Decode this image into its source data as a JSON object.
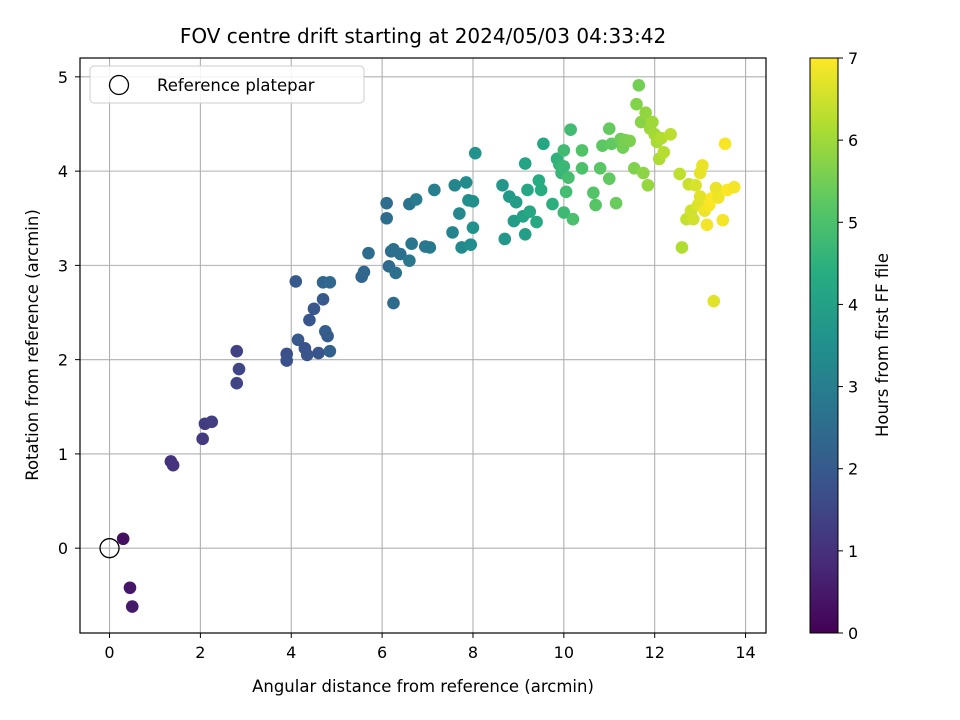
{
  "chart_data": {
    "type": "scatter",
    "title": "FOV centre drift starting at 2024/05/03 04:33:42",
    "xlabel": "Angular distance from reference (arcmin)",
    "ylabel": "Rotation from reference (arcmin)",
    "xlim": [
      -0.65,
      14.45
    ],
    "ylim": [
      -0.9,
      5.2
    ],
    "xticks": [
      0,
      2,
      4,
      6,
      8,
      10,
      12,
      14
    ],
    "yticks": [
      0,
      1,
      2,
      3,
      4,
      5
    ],
    "grid": true,
    "legend": {
      "placement": "upper-left",
      "entries": [
        "Reference platepar"
      ]
    },
    "reference_point": {
      "x": 0,
      "y": 0,
      "label": "Reference platepar"
    },
    "colorbar": {
      "label": "Hours from first FF file",
      "colormap": "viridis",
      "range": [
        0,
        7
      ],
      "ticks": [
        0,
        1,
        2,
        3,
        4,
        5,
        6,
        7
      ]
    },
    "series": [
      {
        "x": [
          0.3,
          0.45,
          0.5,
          1.35,
          1.4,
          2.05,
          2.1,
          2.25,
          2.8,
          2.8,
          2.85,
          3.9,
          3.9,
          4.1,
          4.15,
          4.3,
          4.35,
          4.4,
          4.5,
          4.6,
          4.7,
          4.7,
          4.75,
          4.8,
          4.85,
          4.85,
          5.55,
          5.6,
          5.7,
          6.1,
          6.1,
          6.15,
          6.2,
          6.25,
          6.25,
          6.3,
          6.4,
          6.6,
          6.6,
          6.65,
          6.75,
          6.95,
          7.05,
          7.15,
          7.55,
          7.6,
          7.7,
          7.75,
          7.85,
          7.9,
          7.95,
          8.0,
          8.0,
          8.05,
          8.65,
          8.7,
          8.8,
          8.9,
          8.95,
          9.1,
          9.15,
          9.15,
          9.2,
          9.25,
          9.4,
          9.45,
          9.5,
          9.55,
          9.75,
          9.85,
          9.9,
          9.95,
          10.0,
          10.0,
          10.0,
          10.05,
          10.1,
          10.15,
          10.2,
          10.4,
          10.4,
          10.65,
          10.7,
          10.8,
          10.85,
          11.0,
          11.0,
          11.05,
          11.15,
          11.25,
          11.3,
          11.35,
          11.45,
          11.55,
          11.6,
          11.65,
          11.7,
          11.75,
          11.8,
          11.85,
          11.9,
          11.95,
          12.0,
          12.05,
          12.1,
          12.15,
          12.2,
          12.35,
          12.55,
          12.6,
          12.7,
          12.75,
          12.8,
          12.85,
          12.9,
          12.95,
          13.0,
          13.0,
          13.05,
          13.1,
          13.15,
          13.2,
          13.25,
          13.3,
          13.35,
          13.4,
          13.5,
          13.55,
          13.6,
          13.75
        ],
        "y": [
          0.1,
          -0.42,
          -0.62,
          0.92,
          0.88,
          1.16,
          1.32,
          1.34,
          2.09,
          1.75,
          1.9,
          2.06,
          1.99,
          2.83,
          2.21,
          2.12,
          2.05,
          2.42,
          2.54,
          2.07,
          2.64,
          2.82,
          2.3,
          2.25,
          2.82,
          2.09,
          2.88,
          2.93,
          3.13,
          3.5,
          3.66,
          2.99,
          3.15,
          3.17,
          2.6,
          2.92,
          3.12,
          3.05,
          3.65,
          3.23,
          3.7,
          3.2,
          3.19,
          3.8,
          3.35,
          3.85,
          3.55,
          3.19,
          3.88,
          3.69,
          3.22,
          3.68,
          3.4,
          4.19,
          3.85,
          3.28,
          3.73,
          3.47,
          3.67,
          3.52,
          3.33,
          4.08,
          3.8,
          3.57,
          3.46,
          3.9,
          3.8,
          4.29,
          3.65,
          4.13,
          4.07,
          3.98,
          4.05,
          3.56,
          4.22,
          3.78,
          3.93,
          4.44,
          3.49,
          4.03,
          4.22,
          3.77,
          3.64,
          4.03,
          4.27,
          3.92,
          4.45,
          4.29,
          3.66,
          4.34,
          4.25,
          4.33,
          4.32,
          4.03,
          4.71,
          4.91,
          4.52,
          3.98,
          4.62,
          3.85,
          4.45,
          4.52,
          4.39,
          4.31,
          4.13,
          4.35,
          4.2,
          4.39,
          3.97,
          3.19,
          3.49,
          3.86,
          3.58,
          3.49,
          3.85,
          3.64,
          3.73,
          3.98,
          4.06,
          3.58,
          3.43,
          3.64,
          3.71,
          2.62,
          3.82,
          3.72,
          3.48,
          4.29,
          3.8,
          3.83
        ],
        "hours": [
          0.3,
          0.45,
          0.5,
          1.0,
          1.05,
          1.2,
          1.25,
          1.3,
          1.4,
          1.45,
          1.5,
          1.7,
          1.75,
          2.0,
          1.95,
          1.8,
          1.85,
          1.9,
          1.95,
          1.9,
          2.0,
          2.3,
          2.1,
          2.05,
          2.4,
          2.2,
          2.3,
          2.35,
          2.5,
          2.5,
          2.55,
          2.4,
          2.45,
          2.6,
          2.5,
          2.6,
          2.6,
          2.8,
          2.7,
          2.75,
          2.9,
          2.8,
          2.85,
          3.0,
          3.1,
          3.2,
          3.3,
          3.3,
          3.4,
          3.5,
          3.45,
          3.5,
          3.55,
          3.6,
          3.7,
          3.75,
          3.8,
          3.85,
          3.9,
          4.0,
          3.95,
          4.1,
          4.15,
          4.2,
          4.25,
          4.3,
          4.35,
          4.2,
          4.45,
          4.5,
          4.6,
          4.65,
          4.7,
          4.75,
          4.8,
          4.85,
          4.9,
          4.8,
          4.95,
          5.0,
          5.05,
          5.1,
          5.15,
          5.2,
          5.25,
          5.3,
          5.35,
          5.3,
          5.4,
          5.45,
          5.5,
          5.55,
          5.6,
          5.65,
          5.7,
          5.5,
          5.75,
          5.8,
          5.85,
          5.9,
          5.95,
          6.0,
          6.05,
          6.1,
          6.15,
          6.2,
          6.25,
          6.3,
          6.35,
          6.2,
          6.4,
          6.45,
          6.5,
          6.55,
          6.6,
          6.65,
          6.7,
          6.75,
          6.8,
          6.85,
          6.9,
          6.95,
          7.0,
          6.7,
          6.8,
          6.85,
          6.9,
          6.95,
          7.0,
          6.9
        ]
      }
    ]
  }
}
